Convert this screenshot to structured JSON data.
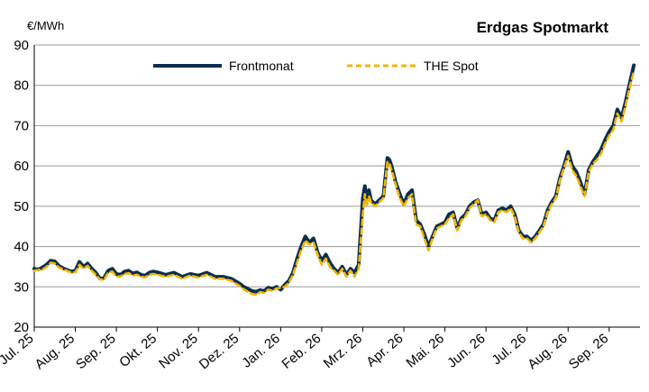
{
  "chart_data": {
    "type": "line",
    "title": "Erdgas Spotmarkt",
    "ylabel": "€/MWh",
    "xlabel": "",
    "ylim": [
      20,
      90
    ],
    "yticks": [
      20,
      30,
      40,
      50,
      60,
      70,
      80,
      90
    ],
    "grid": true,
    "legend_position": "top-center",
    "x_tick_labels": [
      "Jul. 25",
      "Aug. 25",
      "Sep. 25",
      "Okt. 25",
      "Nov. 25",
      "Dez. 25",
      "Jan. 26",
      "Feb. 26",
      "Mrz. 26",
      "Apr. 26",
      "Mai. 26",
      "Jun. 26",
      "Jul. 26",
      "Aug. 26",
      "Sep. 26"
    ],
    "x_range": [
      0,
      14.75
    ],
    "series": [
      {
        "name": "Frontmonat",
        "color": "#0b2d4f",
        "style": "solid",
        "x": [
          0,
          0.1,
          0.2,
          0.3,
          0.4,
          0.5,
          0.6,
          0.7,
          0.8,
          0.9,
          1.0,
          1.1,
          1.2,
          1.3,
          1.4,
          1.5,
          1.6,
          1.7,
          1.8,
          1.9,
          2.0,
          2.1,
          2.2,
          2.3,
          2.4,
          2.5,
          2.6,
          2.7,
          2.8,
          2.9,
          3.0,
          3.2,
          3.4,
          3.6,
          3.8,
          4.0,
          4.2,
          4.4,
          4.6,
          4.8,
          5.0,
          5.1,
          5.2,
          5.3,
          5.4,
          5.5,
          5.6,
          5.7,
          5.8,
          5.9,
          6.0,
          6.1,
          6.2,
          6.3,
          6.4,
          6.5,
          6.6,
          6.7,
          6.8,
          6.9,
          7.0,
          7.1,
          7.2,
          7.3,
          7.4,
          7.5,
          7.6,
          7.7,
          7.8,
          7.9,
          8.0,
          8.05,
          8.1,
          8.15,
          8.2,
          8.3,
          8.4,
          8.5,
          8.6,
          8.65,
          8.7,
          8.8,
          8.9,
          9.0,
          9.1,
          9.2,
          9.3,
          9.4,
          9.5,
          9.6,
          9.7,
          9.8,
          9.9,
          10.0,
          10.1,
          10.2,
          10.3,
          10.4,
          10.5,
          10.6,
          10.7,
          10.8,
          10.9,
          11.0,
          11.1,
          11.2,
          11.3,
          11.4,
          11.5,
          11.6,
          11.7,
          11.8,
          11.9,
          12.0,
          12.1,
          12.2,
          12.3,
          12.4,
          12.5,
          12.6,
          12.7,
          12.8,
          12.9,
          13.0,
          13.1,
          13.2,
          13.3,
          13.4,
          13.5,
          13.6,
          13.7,
          13.8,
          13.9,
          14.0,
          14.1,
          14.2,
          14.3,
          14.4,
          14.5,
          14.6
        ],
        "values": [
          34.5,
          34.3,
          34.8,
          35.5,
          36.5,
          36.3,
          35.2,
          34.6,
          34.2,
          33.8,
          34.0,
          36.2,
          35.0,
          35.8,
          34.5,
          33.5,
          32.0,
          32.2,
          34.0,
          34.5,
          33.2,
          33.0,
          33.8,
          34.0,
          33.3,
          33.6,
          33.0,
          32.8,
          33.5,
          33.8,
          33.6,
          33.0,
          33.5,
          32.5,
          33.2,
          32.8,
          33.5,
          32.5,
          32.5,
          32.0,
          30.8,
          30.0,
          29.5,
          29.0,
          28.8,
          29.2,
          29.0,
          29.8,
          29.5,
          30.0,
          29.3,
          30.5,
          31.5,
          33.5,
          37.0,
          40.0,
          42.5,
          41.0,
          42.0,
          38.5,
          36.5,
          38.0,
          36.0,
          34.5,
          33.5,
          35.0,
          33.0,
          34.5,
          33.5,
          35.5,
          52.0,
          55.0,
          51.0,
          54.0,
          51.5,
          50.5,
          51.5,
          52.5,
          62.0,
          61.5,
          60.0,
          56.0,
          53.0,
          50.5,
          53.0,
          54.0,
          46.5,
          45.5,
          43.0,
          40.0,
          42.5,
          45.0,
          45.5,
          46.0,
          48.0,
          48.5,
          44.5,
          47.0,
          48.0,
          50.0,
          51.0,
          51.5,
          48.0,
          48.5,
          47.0,
          46.5,
          49.0,
          49.5,
          49.0,
          50.0,
          48.0,
          44.0,
          42.5,
          42.5,
          41.5,
          42.5,
          44.0,
          45.5,
          49.0,
          51.0,
          52.5,
          57.0,
          60.0,
          63.5,
          60.0,
          58.5,
          56.0,
          53.0,
          59.0,
          61.0,
          62.5,
          64.0,
          66.5,
          68.5,
          70.0,
          74.0,
          72.0,
          76.0,
          80.5,
          85.0
        ]
      },
      {
        "name": "THE Spot",
        "color": "#f2b600",
        "style": "dashed",
        "x": [
          0,
          0.1,
          0.2,
          0.3,
          0.4,
          0.5,
          0.6,
          0.7,
          0.8,
          0.9,
          1.0,
          1.1,
          1.2,
          1.3,
          1.4,
          1.5,
          1.6,
          1.7,
          1.8,
          1.9,
          2.0,
          2.1,
          2.2,
          2.3,
          2.4,
          2.5,
          2.6,
          2.7,
          2.8,
          2.9,
          3.0,
          3.2,
          3.4,
          3.6,
          3.8,
          4.0,
          4.2,
          4.4,
          4.6,
          4.8,
          5.0,
          5.1,
          5.2,
          5.3,
          5.4,
          5.5,
          5.6,
          5.7,
          5.8,
          5.9,
          6.0,
          6.1,
          6.2,
          6.3,
          6.4,
          6.5,
          6.6,
          6.7,
          6.8,
          6.9,
          7.0,
          7.1,
          7.2,
          7.3,
          7.4,
          7.5,
          7.6,
          7.7,
          7.8,
          7.9,
          8.0,
          8.05,
          8.1,
          8.15,
          8.2,
          8.3,
          8.4,
          8.5,
          8.6,
          8.65,
          8.7,
          8.8,
          8.9,
          9.0,
          9.1,
          9.2,
          9.3,
          9.4,
          9.5,
          9.6,
          9.7,
          9.8,
          9.9,
          10.0,
          10.1,
          10.2,
          10.3,
          10.4,
          10.5,
          10.6,
          10.7,
          10.8,
          10.9,
          11.0,
          11.1,
          11.2,
          11.3,
          11.4,
          11.5,
          11.6,
          11.7,
          11.8,
          11.9,
          12.0,
          12.1,
          12.2,
          12.3,
          12.4,
          12.5,
          12.6,
          12.7,
          12.8,
          12.9,
          13.0,
          13.1,
          13.2,
          13.3,
          13.4,
          13.5,
          13.6,
          13.7,
          13.8,
          13.9,
          14.0,
          14.1,
          14.2,
          14.3,
          14.4,
          14.5,
          14.6
        ],
        "values": [
          34.0,
          34.2,
          34.3,
          35.0,
          36.0,
          35.8,
          34.8,
          34.3,
          34.0,
          33.5,
          33.6,
          35.5,
          34.5,
          35.2,
          34.0,
          33.0,
          31.8,
          31.8,
          33.5,
          33.8,
          32.5,
          32.6,
          33.2,
          33.4,
          32.8,
          33.0,
          32.5,
          32.3,
          33.0,
          33.2,
          33.0,
          32.5,
          33.0,
          32.0,
          32.8,
          32.3,
          33.0,
          32.0,
          32.0,
          31.5,
          30.2,
          29.4,
          28.8,
          28.2,
          28.0,
          28.7,
          28.5,
          29.3,
          29.0,
          29.6,
          29.8,
          30.0,
          31.0,
          33.0,
          36.0,
          39.0,
          41.5,
          40.5,
          41.0,
          38.0,
          35.5,
          37.0,
          35.0,
          34.0,
          33.0,
          34.5,
          32.5,
          34.0,
          32.5,
          34.5,
          48.0,
          53.0,
          50.0,
          52.5,
          51.0,
          50.0,
          51.0,
          52.0,
          61.0,
          60.5,
          59.0,
          55.5,
          52.0,
          50.0,
          52.0,
          53.0,
          45.5,
          45.0,
          42.0,
          39.0,
          42.0,
          44.5,
          45.0,
          45.5,
          47.0,
          48.0,
          44.0,
          46.5,
          47.5,
          49.5,
          50.5,
          51.5,
          47.5,
          48.0,
          46.5,
          46.0,
          48.5,
          49.0,
          48.5,
          49.5,
          47.5,
          43.5,
          42.0,
          42.0,
          41.0,
          42.0,
          43.5,
          45.0,
          48.5,
          50.5,
          52.0,
          56.5,
          59.5,
          62.5,
          59.0,
          57.5,
          55.0,
          52.5,
          58.5,
          60.5,
          61.5,
          63.0,
          65.5,
          67.5,
          69.0,
          73.0,
          71.0,
          75.0,
          79.5,
          83.5
        ]
      }
    ]
  }
}
